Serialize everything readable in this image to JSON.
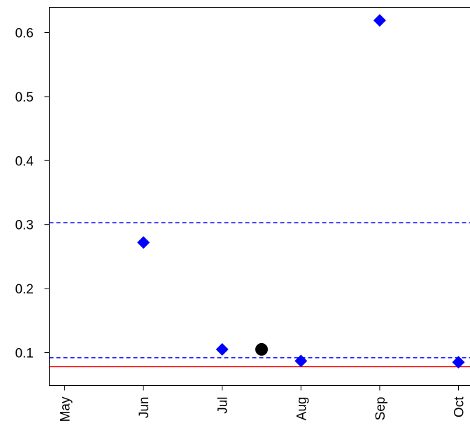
{
  "chart_data": {
    "type": "scatter",
    "title": "",
    "xlabel": "",
    "ylabel": "",
    "x_ticks": [
      {
        "label": "May",
        "month": 5
      },
      {
        "label": "Jun",
        "month": 6
      },
      {
        "label": "Jul",
        "month": 7
      },
      {
        "label": "Aug",
        "month": 8
      },
      {
        "label": "Sep",
        "month": 9
      },
      {
        "label": "Oct",
        "month": 10
      }
    ],
    "y_ticks": [
      {
        "label": "0.1",
        "value": 0.1
      },
      {
        "label": "0.2",
        "value": 0.2
      },
      {
        "label": "0.3",
        "value": 0.3
      },
      {
        "label": "0.4",
        "value": 0.4
      },
      {
        "label": "0.5",
        "value": 0.5
      },
      {
        "label": "0.6",
        "value": 0.6
      }
    ],
    "xlim": [
      4.8,
      10.3
    ],
    "ylim": [
      0.045,
      0.64
    ],
    "grid": false,
    "series": [
      {
        "marker": "diamond",
        "color": "#0000FF",
        "points": [
          {
            "x": 6.0,
            "y": 0.272
          },
          {
            "x": 7.0,
            "y": 0.105
          },
          {
            "x": 8.0,
            "y": 0.087
          },
          {
            "x": 9.0,
            "y": 0.619
          },
          {
            "x": 10.0,
            "y": 0.085
          }
        ]
      },
      {
        "marker": "circle",
        "color": "#000000",
        "points": [
          {
            "x": 7.5,
            "y": 0.105
          }
        ]
      }
    ],
    "reference_lines": [
      {
        "y": 0.303,
        "color": "#0000FF",
        "style": "dashed"
      },
      {
        "y": 0.092,
        "color": "#0000FF",
        "style": "dashed"
      },
      {
        "y": 0.078,
        "color": "#FF0000",
        "style": "solid"
      }
    ]
  }
}
